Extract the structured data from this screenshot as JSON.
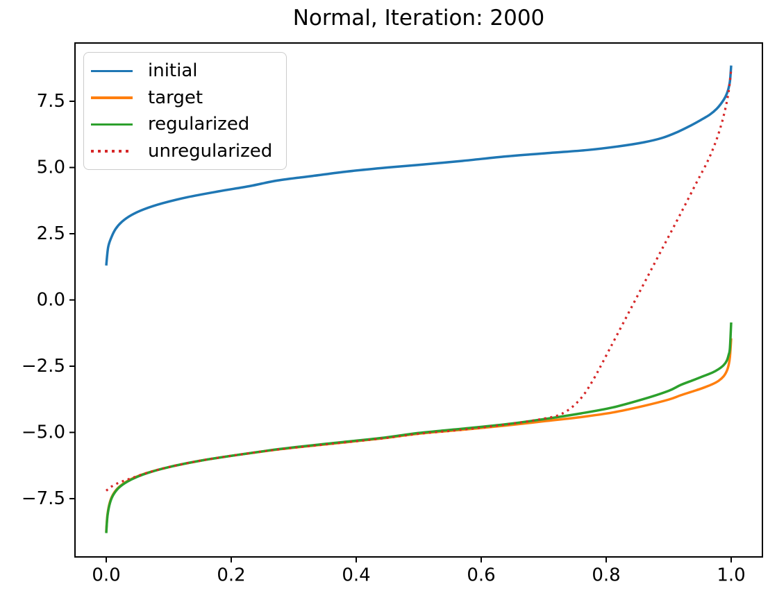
{
  "figure": {
    "background": "#ffffff",
    "axes_edge_color": "#000000"
  },
  "chart_data": {
    "type": "line",
    "title": "Normal, Iteration: 2000",
    "xlabel": "",
    "ylabel": "",
    "grid": false,
    "xlim": [
      -0.05,
      1.05
    ],
    "ylim": [
      -9.7,
      9.7
    ],
    "legend_position": "upper left",
    "x_ticks": [
      {
        "value": 0.0,
        "label": "0.0"
      },
      {
        "value": 0.2,
        "label": "0.2"
      },
      {
        "value": 0.4,
        "label": "0.4"
      },
      {
        "value": 0.6,
        "label": "0.6"
      },
      {
        "value": 0.8,
        "label": "0.8"
      },
      {
        "value": 1.0,
        "label": "1.0"
      }
    ],
    "y_ticks": [
      {
        "value": 7.5,
        "label": "7.5"
      },
      {
        "value": 5.0,
        "label": "5.0"
      },
      {
        "value": 2.5,
        "label": "2.5"
      },
      {
        "value": 0.0,
        "label": "0.0"
      },
      {
        "value": -2.5,
        "label": "−2.5"
      },
      {
        "value": -5.0,
        "label": "−5.0"
      },
      {
        "value": -7.5,
        "label": "−7.5"
      }
    ],
    "series": [
      {
        "name": "initial",
        "color": "#1f77b4",
        "style": "solid",
        "line_width": 3.5,
        "points": [
          [
            0.0,
            1.3
          ],
          [
            0.003,
            1.98
          ],
          [
            0.008,
            2.35
          ],
          [
            0.015,
            2.68
          ],
          [
            0.025,
            2.95
          ],
          [
            0.04,
            3.2
          ],
          [
            0.06,
            3.42
          ],
          [
            0.09,
            3.65
          ],
          [
            0.13,
            3.88
          ],
          [
            0.18,
            4.1
          ],
          [
            0.23,
            4.3
          ],
          [
            0.274,
            4.51
          ],
          [
            0.33,
            4.68
          ],
          [
            0.386,
            4.85
          ],
          [
            0.45,
            5.0
          ],
          [
            0.5,
            5.1
          ],
          [
            0.57,
            5.25
          ],
          [
            0.64,
            5.42
          ],
          [
            0.71,
            5.55
          ],
          [
            0.77,
            5.66
          ],
          [
            0.82,
            5.8
          ],
          [
            0.86,
            5.95
          ],
          [
            0.89,
            6.12
          ],
          [
            0.915,
            6.35
          ],
          [
            0.935,
            6.58
          ],
          [
            0.952,
            6.8
          ],
          [
            0.966,
            7.0
          ],
          [
            0.977,
            7.22
          ],
          [
            0.985,
            7.45
          ],
          [
            0.991,
            7.68
          ],
          [
            0.995,
            7.92
          ],
          [
            0.998,
            8.25
          ],
          [
            1.0,
            8.85
          ]
        ]
      },
      {
        "name": "target",
        "color": "#ff7f0e",
        "style": "solid",
        "line_width": 3.5,
        "points": [
          [
            0.0,
            -8.75
          ],
          [
            0.002,
            -8.1
          ],
          [
            0.006,
            -7.62
          ],
          [
            0.012,
            -7.3
          ],
          [
            0.022,
            -7.03
          ],
          [
            0.04,
            -6.76
          ],
          [
            0.065,
            -6.53
          ],
          [
            0.1,
            -6.31
          ],
          [
            0.15,
            -6.07
          ],
          [
            0.21,
            -5.85
          ],
          [
            0.28,
            -5.63
          ],
          [
            0.36,
            -5.43
          ],
          [
            0.44,
            -5.23
          ],
          [
            0.5,
            -5.05
          ],
          [
            0.57,
            -4.9
          ],
          [
            0.64,
            -4.74
          ],
          [
            0.7,
            -4.58
          ],
          [
            0.76,
            -4.42
          ],
          [
            0.81,
            -4.25
          ],
          [
            0.86,
            -4.0
          ],
          [
            0.9,
            -3.76
          ],
          [
            0.919,
            -3.6
          ],
          [
            0.94,
            -3.44
          ],
          [
            0.955,
            -3.32
          ],
          [
            0.97,
            -3.18
          ],
          [
            0.98,
            -3.05
          ],
          [
            0.988,
            -2.88
          ],
          [
            0.993,
            -2.68
          ],
          [
            0.996,
            -2.45
          ],
          [
            0.998,
            -2.15
          ],
          [
            1.0,
            -1.45
          ]
        ]
      },
      {
        "name": "regularized",
        "color": "#2ca02c",
        "style": "solid",
        "line_width": 3.5,
        "points": [
          [
            0.0,
            -8.8
          ],
          [
            0.002,
            -8.15
          ],
          [
            0.006,
            -7.66
          ],
          [
            0.012,
            -7.33
          ],
          [
            0.022,
            -7.05
          ],
          [
            0.04,
            -6.78
          ],
          [
            0.065,
            -6.54
          ],
          [
            0.1,
            -6.31
          ],
          [
            0.15,
            -6.07
          ],
          [
            0.21,
            -5.85
          ],
          [
            0.28,
            -5.62
          ],
          [
            0.36,
            -5.41
          ],
          [
            0.44,
            -5.21
          ],
          [
            0.5,
            -5.02
          ],
          [
            0.57,
            -4.86
          ],
          [
            0.64,
            -4.69
          ],
          [
            0.7,
            -4.5
          ],
          [
            0.76,
            -4.28
          ],
          [
            0.81,
            -4.06
          ],
          [
            0.86,
            -3.74
          ],
          [
            0.9,
            -3.43
          ],
          [
            0.919,
            -3.21
          ],
          [
            0.94,
            -3.02
          ],
          [
            0.955,
            -2.88
          ],
          [
            0.97,
            -2.74
          ],
          [
            0.98,
            -2.61
          ],
          [
            0.988,
            -2.46
          ],
          [
            0.993,
            -2.29
          ],
          [
            0.996,
            -2.07
          ],
          [
            0.998,
            -1.82
          ],
          [
            1.0,
            -0.85
          ]
        ]
      },
      {
        "name": "unregularized",
        "color": "#d62728",
        "style": "dotted",
        "line_width": 3.2,
        "points": [
          [
            0.0,
            -7.2
          ],
          [
            0.008,
            -7.05
          ],
          [
            0.02,
            -6.9
          ],
          [
            0.04,
            -6.73
          ],
          [
            0.065,
            -6.53
          ],
          [
            0.1,
            -6.31
          ],
          [
            0.15,
            -6.07
          ],
          [
            0.21,
            -5.85
          ],
          [
            0.28,
            -5.63
          ],
          [
            0.36,
            -5.43
          ],
          [
            0.44,
            -5.23
          ],
          [
            0.5,
            -5.05
          ],
          [
            0.56,
            -4.92
          ],
          [
            0.62,
            -4.76
          ],
          [
            0.67,
            -4.6
          ],
          [
            0.7,
            -4.48
          ],
          [
            0.72,
            -4.38
          ],
          [
            0.735,
            -4.22
          ],
          [
            0.75,
            -3.95
          ],
          [
            0.765,
            -3.55
          ],
          [
            0.782,
            -2.9
          ],
          [
            0.8,
            -2.1
          ],
          [
            0.83,
            -0.75
          ],
          [
            0.86,
            0.6
          ],
          [
            0.89,
            1.95
          ],
          [
            0.92,
            3.3
          ],
          [
            0.945,
            4.45
          ],
          [
            0.963,
            5.27
          ],
          [
            0.975,
            5.95
          ],
          [
            0.984,
            6.6
          ],
          [
            0.99,
            7.15
          ],
          [
            0.994,
            7.6
          ],
          [
            0.997,
            8.05
          ],
          [
            1.0,
            8.7
          ]
        ]
      }
    ]
  }
}
